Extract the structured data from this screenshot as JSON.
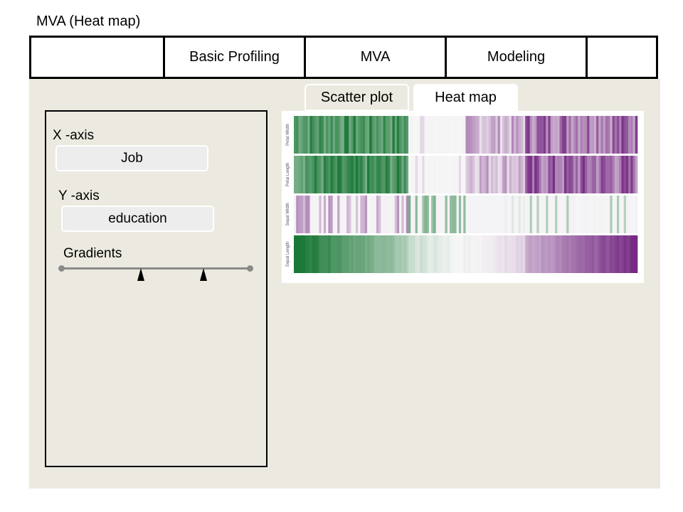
{
  "page": {
    "title": "MVA (Heat map)"
  },
  "nav": {
    "tabs": [
      {
        "label": ""
      },
      {
        "label": "Basic Profiling"
      },
      {
        "label": "MVA"
      },
      {
        "label": "Modeling"
      },
      {
        "label": ""
      }
    ]
  },
  "subtabs": {
    "scatter": "Scatter plot",
    "heat": "Heat map",
    "active": "heat"
  },
  "controls": {
    "x_axis_label": "X -axis",
    "x_axis_value": "Job",
    "y_axis_label": "Y -axis",
    "y_axis_value": "education",
    "gradients_label": "Gradients",
    "gradient_thumbs": [
      0.42,
      0.75
    ]
  },
  "colors": {
    "panel_bg": "#eceae0",
    "green": "#1f7a2c",
    "purple": "#6a1b8a"
  },
  "chart_data": {
    "type": "heatmap",
    "rows": [
      {
        "label": "Petal Width",
        "profile": "strong-low"
      },
      {
        "label": "Petal Length",
        "profile": "strong-low"
      },
      {
        "label": "Sepal Width",
        "profile": "mixed"
      },
      {
        "label": "Sepal Length",
        "profile": "gradient"
      }
    ],
    "columns": 150,
    "colorscale": [
      "green",
      "white",
      "purple"
    ],
    "grid": false
  }
}
